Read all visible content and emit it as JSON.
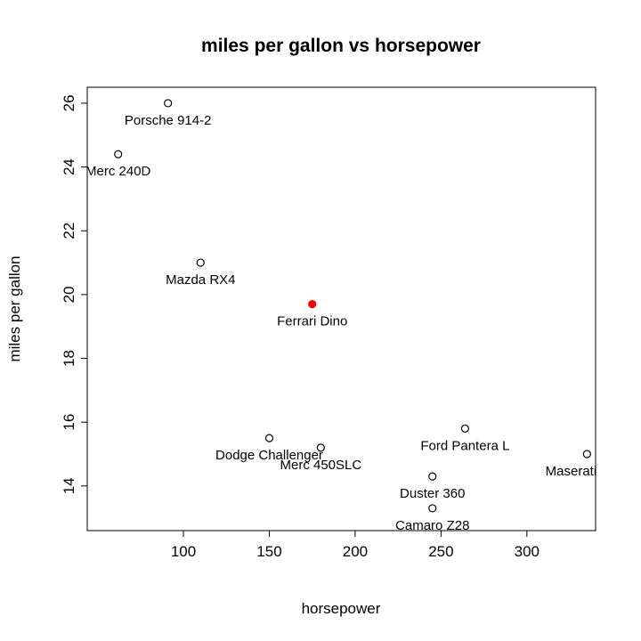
{
  "chart_data": {
    "type": "scatter",
    "title": "miles per gallon vs horsepower",
    "xlabel": "horsepower",
    "ylabel": "miles per gallon",
    "xlim": [
      44,
      340
    ],
    "ylim": [
      12.6,
      26.5
    ],
    "xticks": [
      100,
      150,
      200,
      250,
      300
    ],
    "yticks": [
      14,
      16,
      18,
      20,
      22,
      24,
      26
    ],
    "grid": false,
    "points": [
      {
        "label": "Porsche 914-2",
        "x": 91,
        "y": 26.0,
        "highlight": false
      },
      {
        "label": "Merc 240D",
        "x": 62,
        "y": 24.4,
        "highlight": false
      },
      {
        "label": "Mazda RX4",
        "x": 110,
        "y": 21.0,
        "highlight": false
      },
      {
        "label": "Ferrari Dino",
        "x": 175,
        "y": 19.7,
        "highlight": true
      },
      {
        "label": "Dodge Challenger",
        "x": 150,
        "y": 15.5,
        "highlight": false
      },
      {
        "label": "Merc 450SLC",
        "x": 180,
        "y": 15.2,
        "highlight": false
      },
      {
        "label": "Ford Pantera L",
        "x": 264,
        "y": 15.8,
        "highlight": false
      },
      {
        "label": "Duster 360",
        "x": 245,
        "y": 14.3,
        "highlight": false
      },
      {
        "label": "Camaro Z28",
        "x": 245,
        "y": 13.3,
        "highlight": false
      },
      {
        "label": "Maserati Bora",
        "x": 335,
        "y": 15.0,
        "highlight": false
      }
    ],
    "colors": {
      "normal": "#000000",
      "highlight": "#ff0000"
    }
  }
}
